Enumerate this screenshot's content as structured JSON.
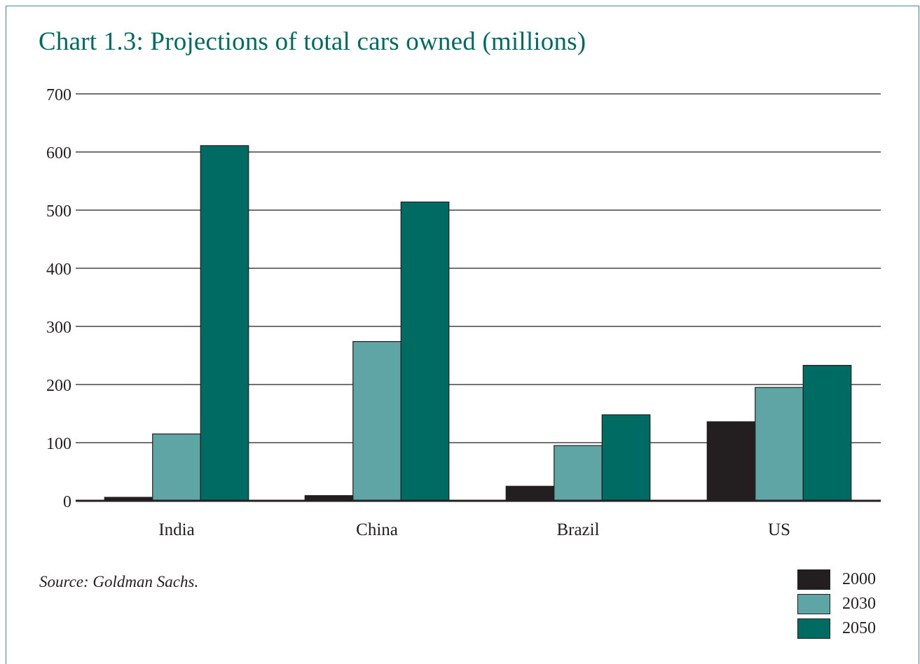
{
  "chart_data": {
    "type": "bar",
    "title": "Chart 1.3: Projections of total cars owned (millions)",
    "categories": [
      "India",
      "China",
      "Brazil",
      "US"
    ],
    "series": [
      {
        "name": "2000",
        "color": "#231f20",
        "values": [
          6,
          9,
          25,
          136
        ]
      },
      {
        "name": "2030",
        "color": "#5fa5a5",
        "values": [
          115,
          274,
          95,
          195
        ]
      },
      {
        "name": "2050",
        "color": "#006b63",
        "values": [
          611,
          514,
          148,
          233
        ]
      }
    ],
    "ylim": [
      0,
      700
    ],
    "yticks": [
      "0",
      "100",
      "200",
      "300",
      "400",
      "500",
      "600",
      "700"
    ],
    "grid": true,
    "legend_position": "bottom-right",
    "source": "Source: Goldman Sachs."
  }
}
